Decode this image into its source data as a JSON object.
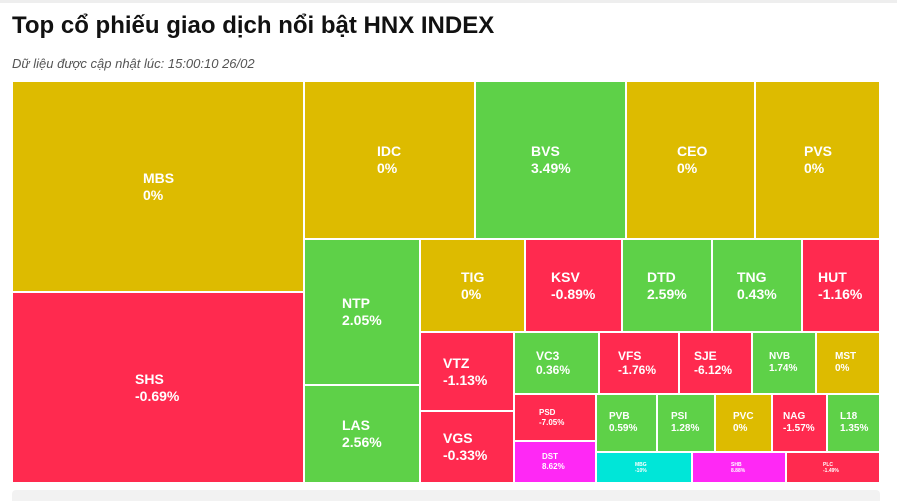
{
  "header": {
    "title": "Top cổ phiếu giao dịch nổi bật HNX INDEX",
    "updated": "Dữ liệu được cập nhật lúc: 15:00:10 26/02"
  },
  "colors": {
    "flat": "#DDBB00",
    "up": "#5ED148",
    "down": "#FF2A4F",
    "ceiling": "#FF28F5",
    "floor": "#00E6D8"
  },
  "chart_data": {
    "type": "treemap",
    "items": [
      {
        "symbol": "MBS",
        "change": "0%",
        "status": "flat"
      },
      {
        "symbol": "SHS",
        "change": "-0.69%",
        "status": "down"
      },
      {
        "symbol": "IDC",
        "change": "0%",
        "status": "flat"
      },
      {
        "symbol": "BVS",
        "change": "3.49%",
        "status": "up"
      },
      {
        "symbol": "CEO",
        "change": "0%",
        "status": "flat"
      },
      {
        "symbol": "PVS",
        "change": "0%",
        "status": "flat"
      },
      {
        "symbol": "NTP",
        "change": "2.05%",
        "status": "up"
      },
      {
        "symbol": "LAS",
        "change": "2.56%",
        "status": "up"
      },
      {
        "symbol": "TIG",
        "change": "0%",
        "status": "flat"
      },
      {
        "symbol": "KSV",
        "change": "-0.89%",
        "status": "down"
      },
      {
        "symbol": "DTD",
        "change": "2.59%",
        "status": "up"
      },
      {
        "symbol": "TNG",
        "change": "0.43%",
        "status": "up"
      },
      {
        "symbol": "HUT",
        "change": "-1.16%",
        "status": "down"
      },
      {
        "symbol": "VTZ",
        "change": "-1.13%",
        "status": "down"
      },
      {
        "symbol": "VGS",
        "change": "-0.33%",
        "status": "down"
      },
      {
        "symbol": "VC3",
        "change": "0.36%",
        "status": "up"
      },
      {
        "symbol": "VFS",
        "change": "-1.76%",
        "status": "down"
      },
      {
        "symbol": "SJE",
        "change": "-6.12%",
        "status": "down"
      },
      {
        "symbol": "NVB",
        "change": "1.74%",
        "status": "up"
      },
      {
        "symbol": "MST",
        "change": "0%",
        "status": "flat"
      },
      {
        "symbol": "PSD",
        "change": "-7.05%",
        "status": "down"
      },
      {
        "symbol": "DST",
        "change": "8.62%",
        "status": "ceiling"
      },
      {
        "symbol": "PVB",
        "change": "0.59%",
        "status": "up"
      },
      {
        "symbol": "PSI",
        "change": "1.28%",
        "status": "up"
      },
      {
        "symbol": "PVC",
        "change": "0%",
        "status": "flat"
      },
      {
        "symbol": "NAG",
        "change": "-1.57%",
        "status": "down"
      },
      {
        "symbol": "L18",
        "change": "1.35%",
        "status": "up"
      },
      {
        "symbol": "MBG",
        "change": "-10%",
        "status": "floor"
      },
      {
        "symbol": "SHB",
        "change": "8.88%",
        "status": "ceiling"
      },
      {
        "symbol": "PLC",
        "change": "-1.49%",
        "status": "down"
      }
    ]
  }
}
